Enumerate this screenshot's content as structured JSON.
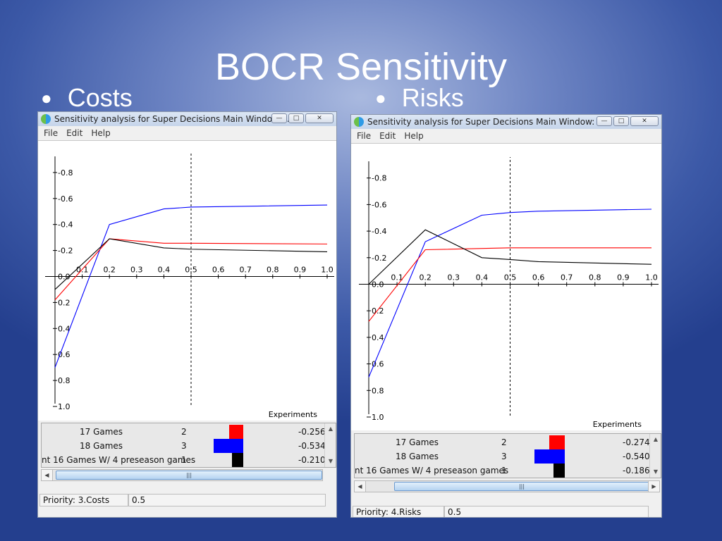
{
  "slide": {
    "title": "BOCR Sensitivity",
    "bullet_left": "Costs",
    "bullet_right": "Risks"
  },
  "windows": [
    {
      "title": "Sensitivity analysis for Super Decisions Main Window: ...",
      "menu": [
        "File",
        "Edit",
        "Help"
      ],
      "legend": [
        {
          "label": "17 Games",
          "num": "2",
          "value": "-0.256",
          "color": "#ff0000"
        },
        {
          "label": "18 Games",
          "num": "3",
          "value": "-0.534",
          "color": "#0000ff"
        },
        {
          "label": "nt 16 Games W/ 4 preseason games",
          "num": "1",
          "value": "-0.210",
          "color": "#000000"
        }
      ],
      "status_label": "Priority: 3.Costs",
      "status_value": "0.5"
    },
    {
      "title": "Sensitivity analysis for Super Decisions Main Window: ...",
      "menu": [
        "File",
        "Edit",
        "Help"
      ],
      "legend": [
        {
          "label": "17 Games",
          "num": "2",
          "value": "-0.274",
          "color": "#ff0000"
        },
        {
          "label": "18 Games",
          "num": "3",
          "value": "-0.540",
          "color": "#0000ff"
        },
        {
          "label": "nt 16 Games W/ 4 preseason games",
          "num": "1",
          "value": "-0.186",
          "color": "#000000"
        }
      ],
      "status_label": "Priority: 4.Risks",
      "status_value": "0.5"
    }
  ],
  "chart_data": [
    {
      "type": "line",
      "xlabel": "Experiments",
      "xlim": [
        0,
        1.0
      ],
      "ylim": [
        -1.0,
        1.0
      ],
      "xticks": [
        "0.1",
        "0.2",
        "0.3",
        "0.4",
        "0.5",
        "0.6",
        "0.7",
        "0.8",
        "0.9",
        "1.0"
      ],
      "yticks": [
        "1.0",
        "0.8",
        "0.6",
        "0.4",
        "0.2",
        "0.0",
        "-0.2",
        "-0.4",
        "-0.6",
        "-0.8"
      ],
      "marker_x": 0.5,
      "series": [
        {
          "color": "#0000ff",
          "x": [
            0,
            0.2,
            0.4,
            0.5,
            1.0
          ],
          "y": [
            0.7,
            -0.4,
            -0.52,
            -0.534,
            -0.55
          ]
        },
        {
          "color": "#ff0000",
          "x": [
            0,
            0.2,
            0.4,
            0.5,
            1.0
          ],
          "y": [
            0.18,
            -0.29,
            -0.256,
            -0.256,
            -0.25
          ]
        },
        {
          "color": "#000000",
          "x": [
            0,
            0.2,
            0.4,
            0.5,
            1.0
          ],
          "y": [
            0.1,
            -0.29,
            -0.22,
            -0.21,
            -0.19
          ]
        }
      ]
    },
    {
      "type": "line",
      "xlabel": "Experiments",
      "xlim": [
        0,
        1.0
      ],
      "ylim": [
        -1.0,
        1.0
      ],
      "xticks": [
        "0.1",
        "0.2",
        "0.3",
        "0.4",
        "0.5",
        "0.6",
        "0.7",
        "0.8",
        "0.9",
        "1.0"
      ],
      "yticks": [
        "1.0",
        "0.8",
        "0.6",
        "0.4",
        "0.2",
        "0.0",
        "-0.2",
        "-0.4",
        "-0.6",
        "-0.8"
      ],
      "marker_x": 0.5,
      "series": [
        {
          "color": "#0000ff",
          "x": [
            0,
            0.2,
            0.4,
            0.5,
            0.6,
            1.0
          ],
          "y": [
            0.7,
            -0.32,
            -0.52,
            -0.54,
            -0.55,
            -0.565
          ]
        },
        {
          "color": "#ff0000",
          "x": [
            0,
            0.2,
            0.5,
            1.0
          ],
          "y": [
            0.28,
            -0.26,
            -0.274,
            -0.274
          ]
        },
        {
          "color": "#000000",
          "x": [
            0,
            0.2,
            0.4,
            0.5,
            0.6,
            1.0
          ],
          "y": [
            0.0,
            -0.41,
            -0.2,
            -0.186,
            -0.17,
            -0.15
          ]
        }
      ]
    }
  ]
}
